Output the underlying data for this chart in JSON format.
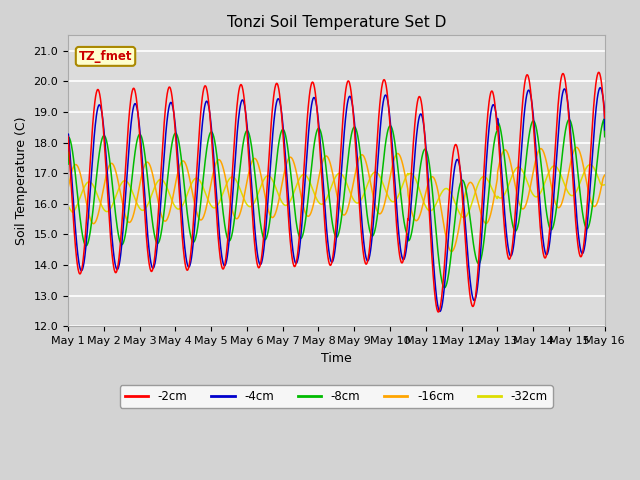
{
  "title": "Tonzi Soil Temperature Set D",
  "xlabel": "Time",
  "ylabel": "Soil Temperature (C)",
  "ylim": [
    12.0,
    21.5
  ],
  "yticks": [
    12.0,
    13.0,
    14.0,
    15.0,
    16.0,
    17.0,
    18.0,
    19.0,
    20.0,
    21.0
  ],
  "n_days": 15,
  "label_box_text": "TZ_fmet",
  "legend_labels": [
    "-2cm",
    "-4cm",
    "-8cm",
    "-16cm",
    "-32cm"
  ],
  "line_colors": [
    "#ff0000",
    "#0000cc",
    "#00bb00",
    "#ffa500",
    "#dddd00"
  ],
  "fig_facecolor": "#d3d3d3",
  "plot_bg_color": "#dcdcdc",
  "title_fontsize": 11,
  "axis_fontsize": 9,
  "tick_fontsize": 8
}
